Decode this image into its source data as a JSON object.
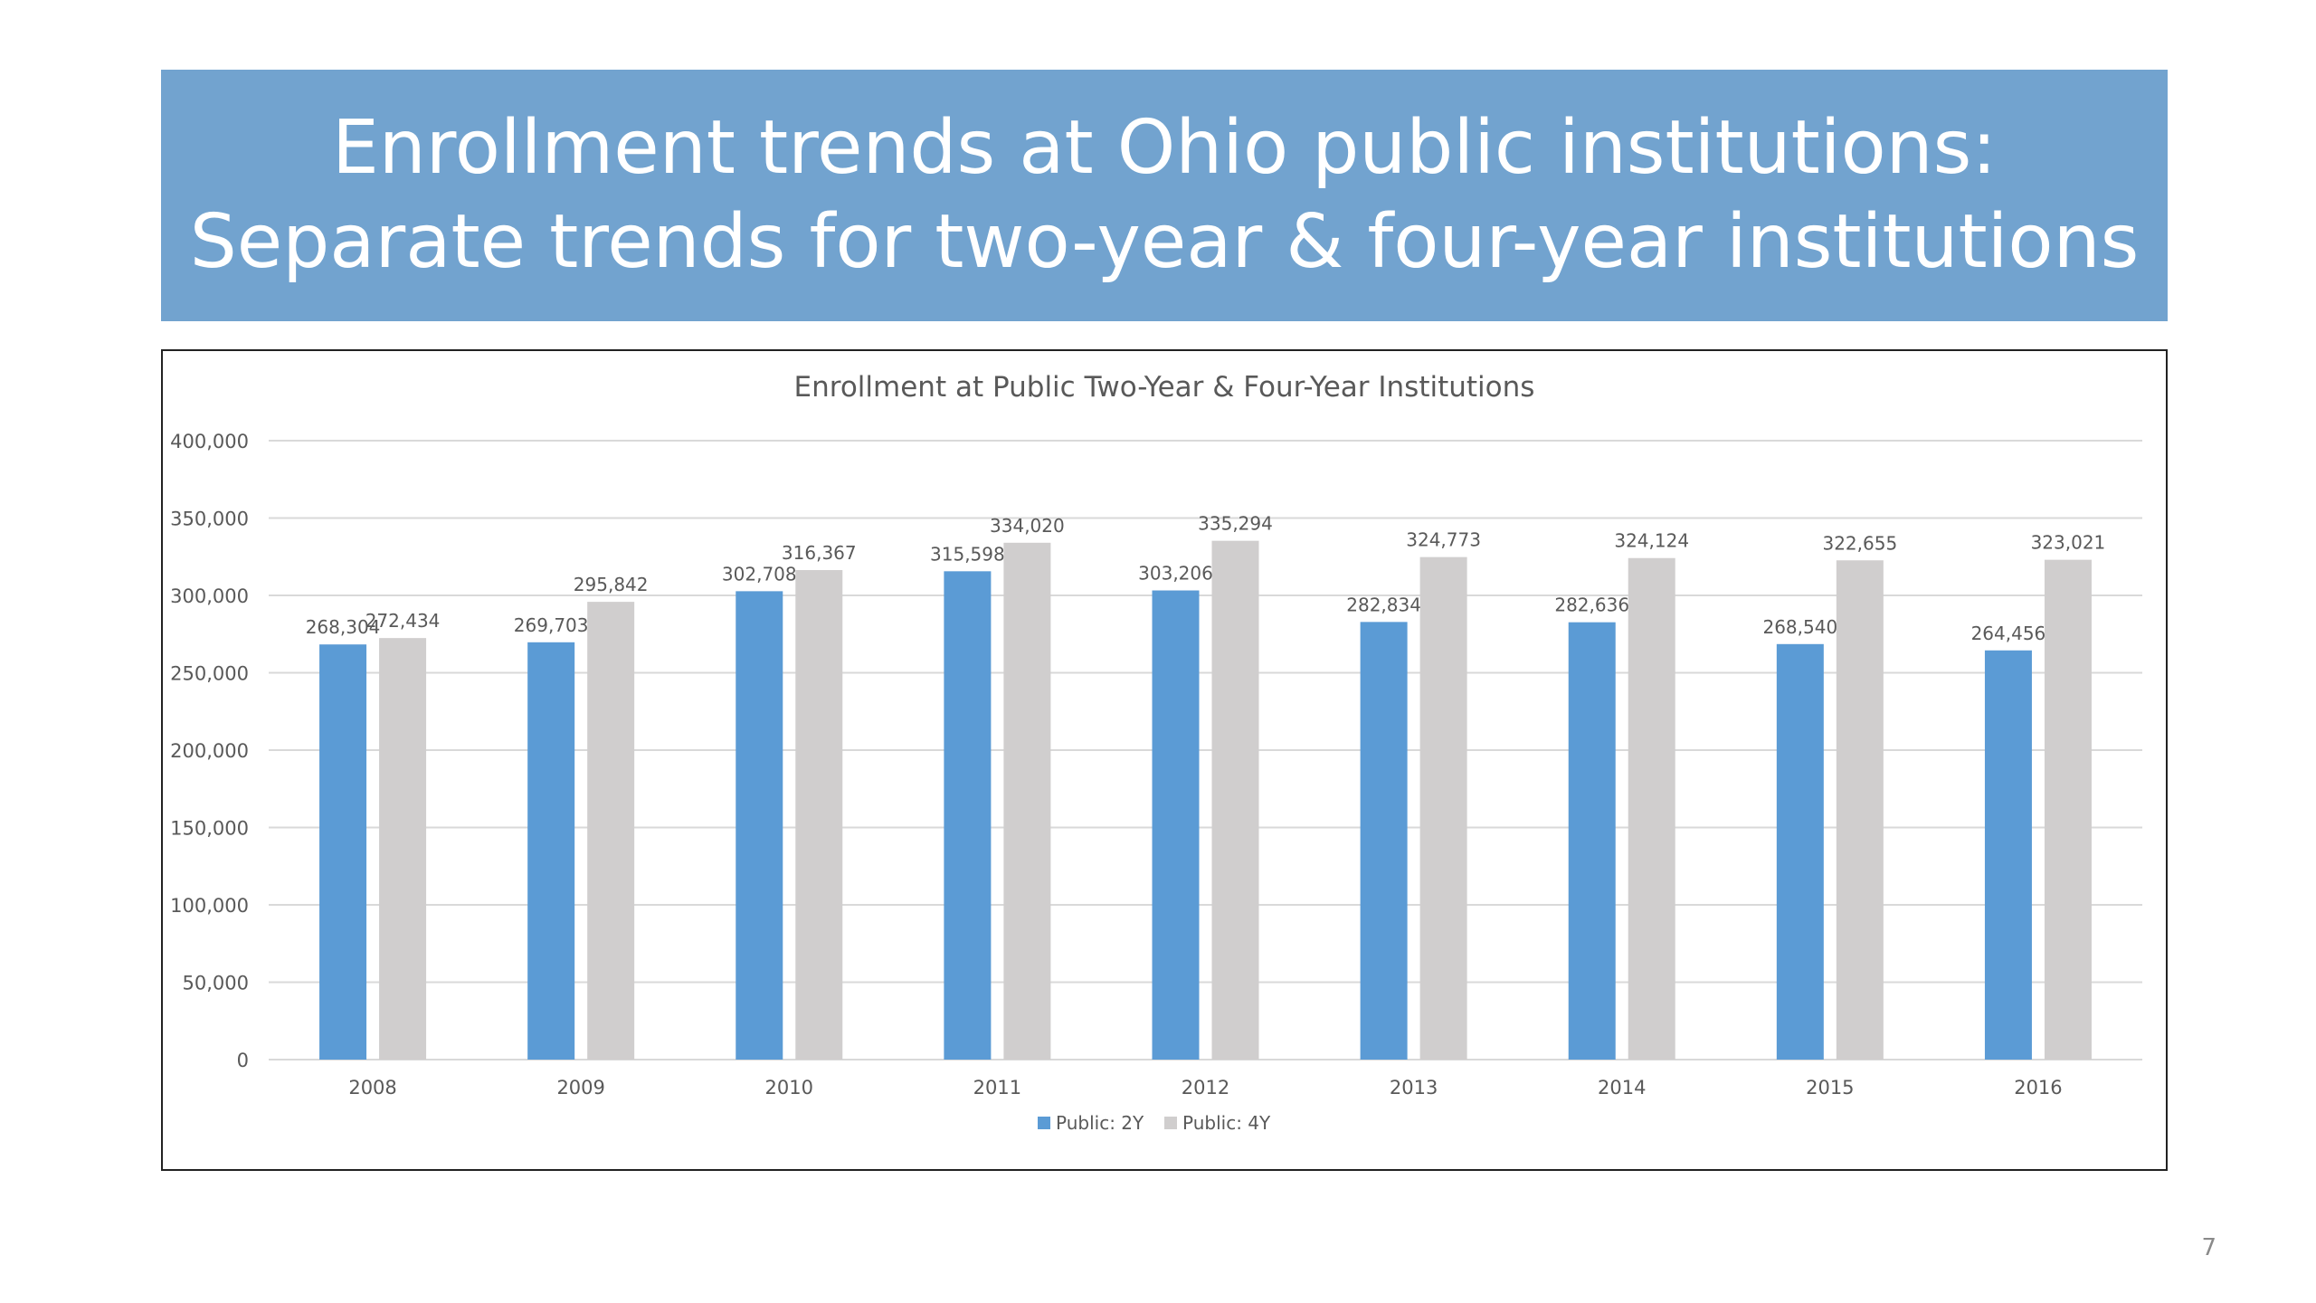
{
  "slide": {
    "title_line1": "Enrollment trends at Ohio public institutions:",
    "title_line2": "Separate trends for two-year & four-year institutions",
    "page_number": "7"
  },
  "colors": {
    "banner": "#72A3CF",
    "series_2y": "#5B9BD5",
    "series_4y": "#D0CECE",
    "text": "#595959",
    "gridline": "#D9D9D9"
  },
  "chart_data": {
    "type": "bar",
    "title": "Enrollment at Public Two-Year & Four-Year Institutions",
    "xlabel": "",
    "ylabel": "",
    "categories": [
      "2008",
      "2009",
      "2010",
      "2011",
      "2012",
      "2013",
      "2014",
      "2015",
      "2016"
    ],
    "series": [
      {
        "name": "Public: 2Y",
        "values": [
          268304,
          269703,
          302708,
          315598,
          303206,
          282834,
          282636,
          268540,
          264456
        ],
        "labels": [
          "268,304",
          "269,703",
          "302,708",
          "315,598",
          "303,206",
          "282,834",
          "282,636",
          "268,540",
          "264,456"
        ]
      },
      {
        "name": "Public: 4Y",
        "values": [
          272434,
          295842,
          316367,
          334020,
          335294,
          324773,
          324124,
          322655,
          323021
        ],
        "labels": [
          "272,434",
          "295,842",
          "316,367",
          "334,020",
          "335,294",
          "324,773",
          "324,124",
          "322,655",
          "323,021"
        ]
      }
    ],
    "ylim": [
      0,
      400000
    ],
    "yticks": [
      0,
      50000,
      100000,
      150000,
      200000,
      250000,
      300000,
      350000,
      400000
    ],
    "ytick_labels": [
      "0",
      "50,000",
      "100,000",
      "150,000",
      "200,000",
      "250,000",
      "300,000",
      "350,000",
      "400,000"
    ],
    "grid": true,
    "legend_position": "bottom"
  }
}
